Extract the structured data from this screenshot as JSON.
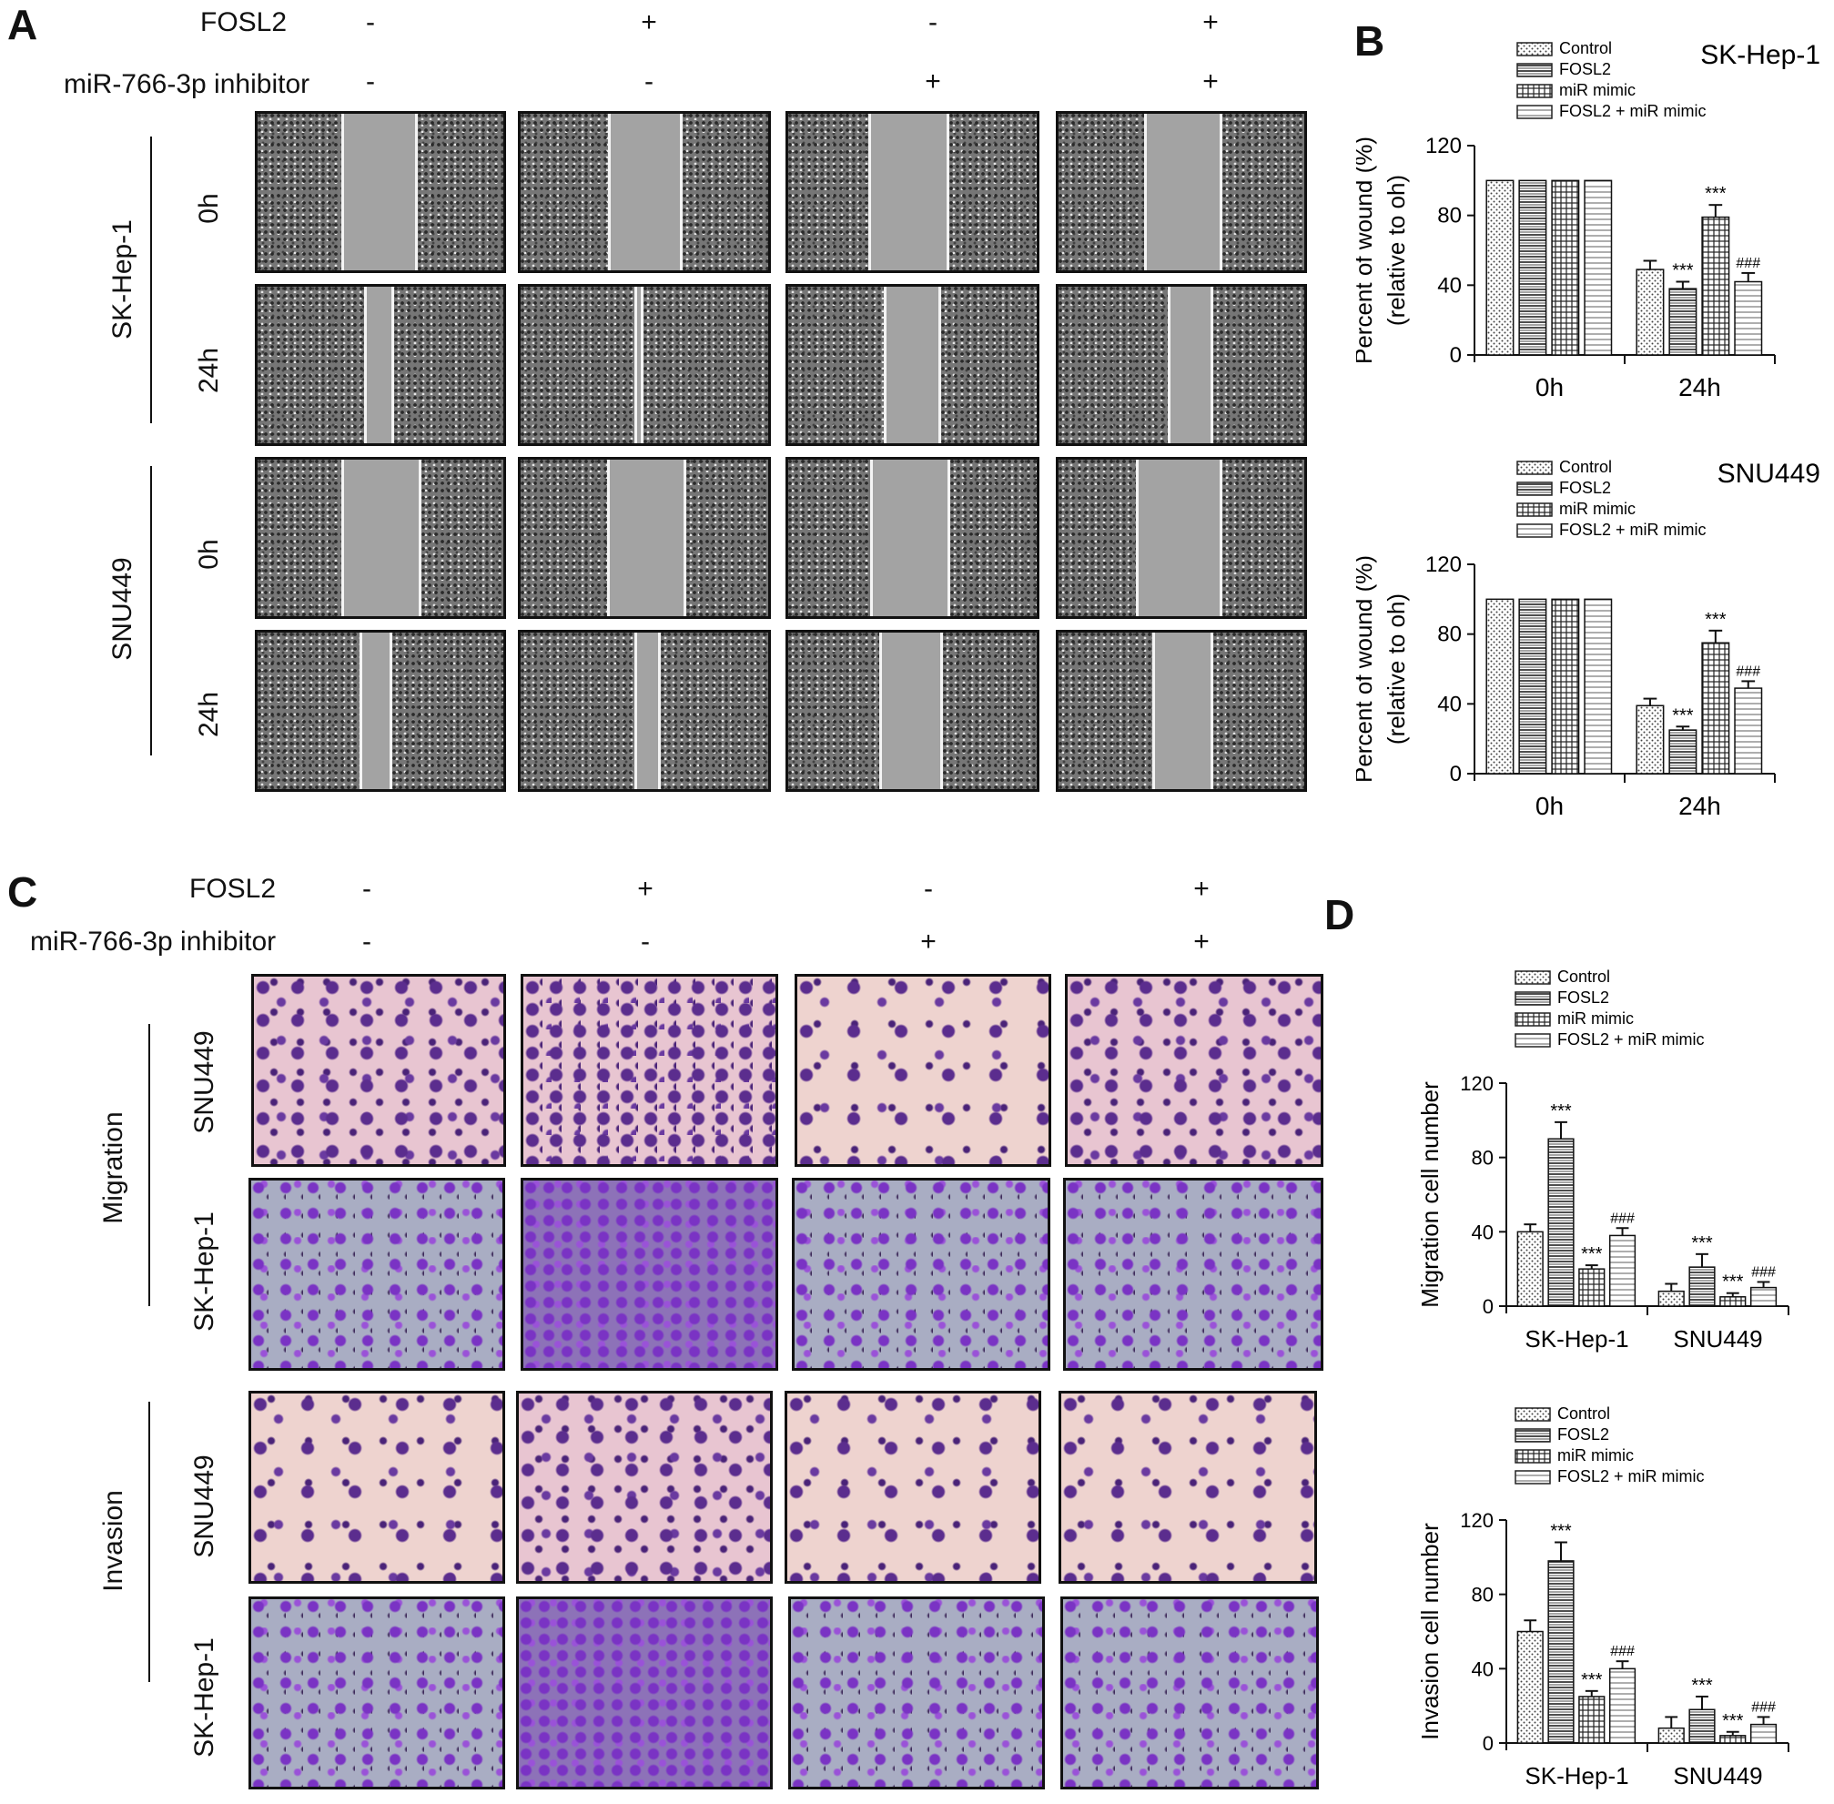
{
  "panels": {
    "a": "A",
    "b": "B",
    "c": "C",
    "d": "D"
  },
  "conditions": {
    "fosl2_label": "FOSL2",
    "inhibitor_label": "miR-766-3p inhibitor",
    "fosl2_signs": [
      "-",
      "+",
      "-",
      "+"
    ],
    "inhibitor_signs": [
      "-",
      "-",
      "+",
      "+"
    ]
  },
  "panel_a": {
    "cell_lines": [
      "SK-Hep-1",
      "SNU449"
    ],
    "timepoints": [
      "0h",
      "24h",
      "0h",
      "24h"
    ]
  },
  "panel_c": {
    "assays": [
      "Migration",
      "Invasion"
    ],
    "row_labels": [
      "SNU449",
      "SK-Hep-1",
      "SNU449",
      "SK-Hep-1"
    ]
  },
  "legend": [
    "Control",
    "FOSL2",
    "miR mimic",
    "FOSL2 + miR mimic"
  ],
  "chart_data": [
    {
      "type": "bar",
      "title": "SK-Hep-1",
      "ylabel": [
        "Percent of wound (%)",
        "(relative to oh)"
      ],
      "categories": [
        "0h",
        "24h"
      ],
      "ylim": [
        0,
        120
      ],
      "yticks": [
        0,
        40,
        80,
        120
      ],
      "series": [
        {
          "name": "Control",
          "values": [
            100,
            49
          ],
          "errors": [
            0,
            5
          ],
          "annot": [
            "",
            ""
          ]
        },
        {
          "name": "FOSL2",
          "values": [
            100,
            38
          ],
          "errors": [
            0,
            4
          ],
          "annot": [
            "",
            "***"
          ]
        },
        {
          "name": "miR mimic",
          "values": [
            100,
            79
          ],
          "errors": [
            0,
            7
          ],
          "annot": [
            "",
            "***"
          ]
        },
        {
          "name": "FOSL2 + miR mimic",
          "values": [
            100,
            42
          ],
          "errors": [
            0,
            5
          ],
          "annot": [
            "",
            "###"
          ]
        }
      ]
    },
    {
      "type": "bar",
      "title": "SNU449",
      "ylabel": [
        "Percent of wound (%)",
        "(relative to oh)"
      ],
      "categories": [
        "0h",
        "24h"
      ],
      "ylim": [
        0,
        120
      ],
      "yticks": [
        0,
        40,
        80,
        120
      ],
      "series": [
        {
          "name": "Control",
          "values": [
            100,
            39
          ],
          "errors": [
            0,
            4
          ],
          "annot": [
            "",
            ""
          ]
        },
        {
          "name": "FOSL2",
          "values": [
            100,
            25
          ],
          "errors": [
            0,
            2
          ],
          "annot": [
            "",
            "***"
          ]
        },
        {
          "name": "miR mimic",
          "values": [
            100,
            75
          ],
          "errors": [
            0,
            7
          ],
          "annot": [
            "",
            "***"
          ]
        },
        {
          "name": "FOSL2 + miR mimic",
          "values": [
            100,
            49
          ],
          "errors": [
            0,
            4
          ],
          "annot": [
            "",
            "###"
          ]
        }
      ]
    },
    {
      "type": "bar",
      "title": "",
      "ylabel": [
        "Migration cell number"
      ],
      "categories": [
        "SK-Hep-1",
        "SNU449"
      ],
      "ylim": [
        0,
        120
      ],
      "yticks": [
        0,
        40,
        80,
        120
      ],
      "series": [
        {
          "name": "Control",
          "values": [
            40,
            8
          ],
          "errors": [
            4,
            4
          ],
          "annot": [
            "",
            ""
          ]
        },
        {
          "name": "FOSL2",
          "values": [
            90,
            21
          ],
          "errors": [
            9,
            7
          ],
          "annot": [
            "***",
            "***"
          ]
        },
        {
          "name": "miR mimic",
          "values": [
            20,
            5
          ],
          "errors": [
            2,
            2
          ],
          "annot": [
            "***",
            "***"
          ]
        },
        {
          "name": "FOSL2 + miR mimic",
          "values": [
            38,
            10
          ],
          "errors": [
            4,
            3
          ],
          "annot": [
            "###",
            "###"
          ]
        }
      ]
    },
    {
      "type": "bar",
      "title": "",
      "ylabel": [
        "Invasion cell number"
      ],
      "categories": [
        "SK-Hep-1",
        "SNU449"
      ],
      "ylim": [
        0,
        120
      ],
      "yticks": [
        0,
        40,
        80,
        120
      ],
      "series": [
        {
          "name": "Control",
          "values": [
            60,
            8
          ],
          "errors": [
            6,
            6
          ],
          "annot": [
            "",
            ""
          ]
        },
        {
          "name": "FOSL2",
          "values": [
            98,
            18
          ],
          "errors": [
            10,
            7
          ],
          "annot": [
            "***",
            "***"
          ]
        },
        {
          "name": "miR mimic",
          "values": [
            25,
            4
          ],
          "errors": [
            3,
            2
          ],
          "annot": [
            "***",
            "***"
          ]
        },
        {
          "name": "FOSL2 + miR mimic",
          "values": [
            40,
            10
          ],
          "errors": [
            4,
            4
          ],
          "annot": [
            "###",
            "###"
          ]
        }
      ]
    }
  ]
}
